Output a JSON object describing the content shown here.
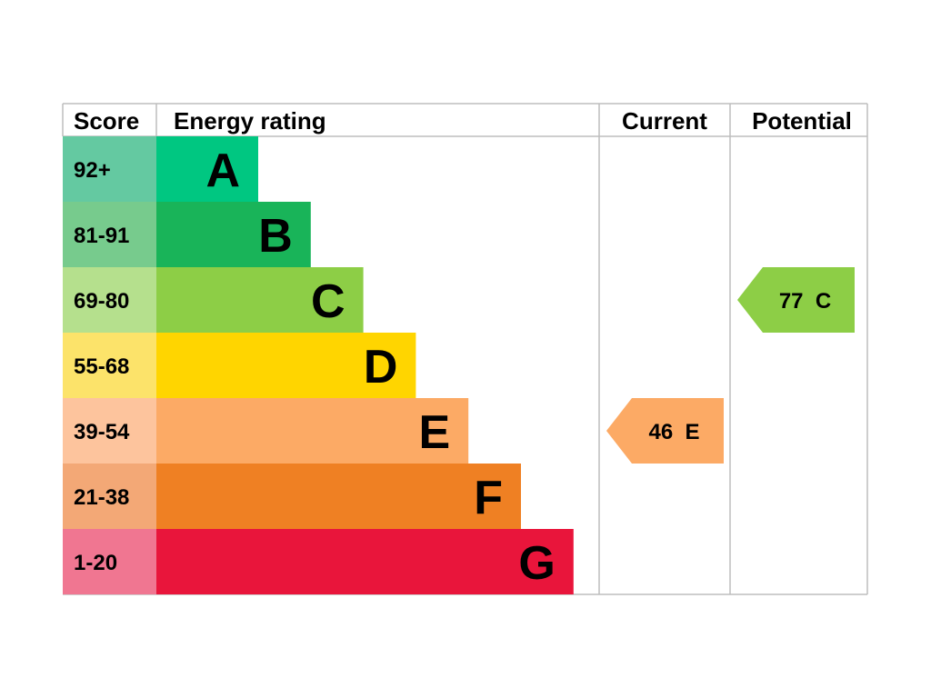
{
  "chart_data": {
    "type": "table",
    "headers": {
      "score": "Score",
      "energy_rating": "Energy rating",
      "current": "Current",
      "potential": "Potential"
    },
    "bands": [
      {
        "letter": "A",
        "score_range": "92+",
        "color": "#00c781",
        "score_bg": "#64c9a1"
      },
      {
        "letter": "B",
        "score_range": "81-91",
        "color": "#19b459",
        "score_bg": "#77cb8d"
      },
      {
        "letter": "C",
        "score_range": "69-80",
        "color": "#8dce46",
        "score_bg": "#b5e08d"
      },
      {
        "letter": "D",
        "score_range": "55-68",
        "color": "#ffd500",
        "score_bg": "#fce36a"
      },
      {
        "letter": "E",
        "score_range": "39-54",
        "color": "#fcaa65",
        "score_bg": "#fdc49d"
      },
      {
        "letter": "F",
        "score_range": "21-38",
        "color": "#ef8023",
        "score_bg": "#f3a876"
      },
      {
        "letter": "G",
        "score_range": "1-20",
        "color": "#e9153b",
        "score_bg": "#f07691"
      }
    ],
    "current": {
      "value": 46,
      "band": "E",
      "label": "46  E",
      "color": "#fcaa65"
    },
    "potential": {
      "value": 77,
      "band": "C",
      "label": "77  C",
      "color": "#8dce46"
    }
  }
}
